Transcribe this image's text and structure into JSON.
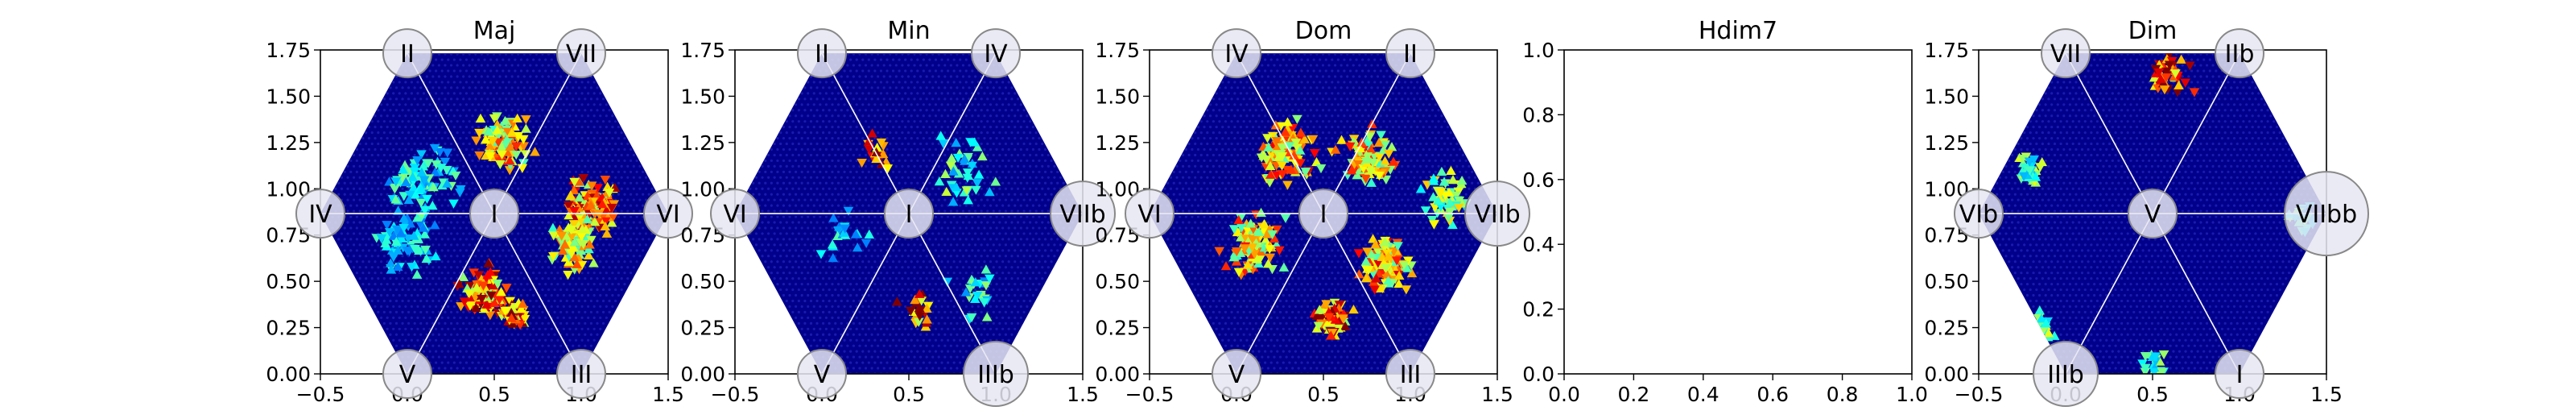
{
  "figure": {
    "background": "#ffffff",
    "hex_fill": "#00008b",
    "hex_dot": "#1a1ab0",
    "guide_line_color": "#ffffff",
    "node_fill": "#e6e6f2",
    "node_stroke": "#888888"
  },
  "chart_data": [
    {
      "type": "heatmap",
      "title": "Maj",
      "xlim": [
        -0.5,
        1.5
      ],
      "ylim": [
        0,
        1.75
      ],
      "xticks": [
        "−0.5",
        "0.0",
        "0.5",
        "1.0",
        "1.5"
      ],
      "yticks": [
        "0.00",
        "0.25",
        "0.50",
        "0.75",
        "1.00",
        "1.25",
        "1.50",
        "1.75"
      ],
      "hex_visible": true,
      "nodes": [
        {
          "label": "II",
          "x": 0.0,
          "y": 1.732
        },
        {
          "label": "VII",
          "x": 1.0,
          "y": 1.732
        },
        {
          "label": "IV",
          "x": -0.5,
          "y": 0.866
        },
        {
          "label": "I",
          "x": 0.5,
          "y": 0.866
        },
        {
          "label": "VI",
          "x": 1.5,
          "y": 0.866
        },
        {
          "label": "V",
          "x": 0.0,
          "y": 0.0
        },
        {
          "label": "III",
          "x": 1.0,
          "y": 0.0
        }
      ],
      "hotspots": [
        {
          "x": 0.55,
          "y": 1.25,
          "intensity": 0.75,
          "spread": 0.2,
          "count": 90
        },
        {
          "x": 0.45,
          "y": 0.45,
          "intensity": 0.9,
          "spread": 0.18,
          "count": 110
        },
        {
          "x": 0.62,
          "y": 0.32,
          "intensity": 0.95,
          "spread": 0.1,
          "count": 60
        },
        {
          "x": 1.05,
          "y": 0.9,
          "intensity": 0.85,
          "spread": 0.2,
          "count": 120
        },
        {
          "x": 0.95,
          "y": 0.7,
          "intensity": 0.7,
          "spread": 0.18,
          "count": 80
        },
        {
          "x": 0.1,
          "y": 1.05,
          "intensity": 0.45,
          "spread": 0.25,
          "count": 90
        },
        {
          "x": 0.0,
          "y": 0.7,
          "intensity": 0.4,
          "spread": 0.25,
          "count": 70
        }
      ]
    },
    {
      "type": "heatmap",
      "title": "Min",
      "xlim": [
        -0.5,
        1.5
      ],
      "ylim": [
        0,
        1.75
      ],
      "xticks": [
        "−0.5",
        "0.0",
        "0.5",
        "1.0",
        "1.5"
      ],
      "yticks": [
        "0.00",
        "0.25",
        "0.50",
        "0.75",
        "1.00",
        "1.25",
        "1.50",
        "1.75"
      ],
      "hex_visible": true,
      "nodes": [
        {
          "label": "II",
          "x": 0.0,
          "y": 1.732
        },
        {
          "label": "IV",
          "x": 1.0,
          "y": 1.732
        },
        {
          "label": "VI",
          "x": -0.5,
          "y": 0.866
        },
        {
          "label": "I",
          "x": 0.5,
          "y": 0.866
        },
        {
          "label": "VIIb",
          "x": 1.5,
          "y": 0.866
        },
        {
          "label": "V",
          "x": 0.0,
          "y": 0.0
        },
        {
          "label": "IIIb",
          "x": 1.0,
          "y": 0.0
        }
      ],
      "hotspots": [
        {
          "x": 0.8,
          "y": 1.1,
          "intensity": 0.5,
          "spread": 0.25,
          "count": 40
        },
        {
          "x": 0.9,
          "y": 0.45,
          "intensity": 0.45,
          "spread": 0.2,
          "count": 25
        },
        {
          "x": 0.15,
          "y": 0.75,
          "intensity": 0.4,
          "spread": 0.2,
          "count": 20
        },
        {
          "x": 0.3,
          "y": 1.2,
          "intensity": 0.95,
          "spread": 0.12,
          "count": 18
        },
        {
          "x": 0.55,
          "y": 0.35,
          "intensity": 0.95,
          "spread": 0.15,
          "count": 22
        }
      ]
    },
    {
      "type": "heatmap",
      "title": "Dom",
      "xlim": [
        -0.5,
        1.5
      ],
      "ylim": [
        0,
        1.75
      ],
      "xticks": [
        "−0.5",
        "0.0",
        "0.5",
        "1.0",
        "1.5"
      ],
      "yticks": [
        "0.00",
        "0.25",
        "0.50",
        "0.75",
        "1.00",
        "1.25",
        "1.50",
        "1.75"
      ],
      "hex_visible": true,
      "nodes": [
        {
          "label": "IV",
          "x": 0.0,
          "y": 1.732
        },
        {
          "label": "II",
          "x": 1.0,
          "y": 1.732
        },
        {
          "label": "VI",
          "x": -0.5,
          "y": 0.866
        },
        {
          "label": "I",
          "x": 0.5,
          "y": 0.866
        },
        {
          "label": "VIIb",
          "x": 1.5,
          "y": 0.866
        },
        {
          "label": "V",
          "x": 0.0,
          "y": 0.0
        },
        {
          "label": "III",
          "x": 1.0,
          "y": 0.0
        }
      ],
      "hotspots": [
        {
          "x": 0.3,
          "y": 1.2,
          "intensity": 0.8,
          "spread": 0.22,
          "count": 120
        },
        {
          "x": 0.75,
          "y": 1.15,
          "intensity": 0.75,
          "spread": 0.22,
          "count": 100
        },
        {
          "x": 0.1,
          "y": 0.7,
          "intensity": 0.75,
          "spread": 0.22,
          "count": 110
        },
        {
          "x": 0.85,
          "y": 0.6,
          "intensity": 0.8,
          "spread": 0.2,
          "count": 110
        },
        {
          "x": 0.55,
          "y": 0.3,
          "intensity": 0.9,
          "spread": 0.15,
          "count": 80
        },
        {
          "x": 1.2,
          "y": 0.95,
          "intensity": 0.6,
          "spread": 0.18,
          "count": 60
        }
      ]
    },
    {
      "type": "empty",
      "title": "Hdim7",
      "xlim": [
        0,
        1
      ],
      "ylim": [
        0,
        1
      ],
      "xticks": [
        "0.0",
        "0.2",
        "0.4",
        "0.6",
        "0.8",
        "1.0"
      ],
      "yticks": [
        "0.0",
        "0.2",
        "0.4",
        "0.6",
        "0.8",
        "1.0"
      ],
      "hex_visible": false,
      "nodes": [],
      "hotspots": []
    },
    {
      "type": "heatmap",
      "title": "Dim",
      "xlim": [
        -0.5,
        1.5
      ],
      "ylim": [
        0,
        1.75
      ],
      "xticks": [
        "−0.5",
        "0.0",
        "0.5",
        "1.0",
        "1.5"
      ],
      "yticks": [
        "0.00",
        "0.25",
        "0.50",
        "0.75",
        "1.00",
        "1.25",
        "1.50",
        "1.75"
      ],
      "hex_visible": true,
      "nodes": [
        {
          "label": "VII",
          "x": 0.0,
          "y": 1.732
        },
        {
          "label": "IIb",
          "x": 1.0,
          "y": 1.732
        },
        {
          "label": "VIb",
          "x": -0.5,
          "y": 0.866
        },
        {
          "label": "V",
          "x": 0.5,
          "y": 0.866
        },
        {
          "label": "VIIbb",
          "x": 1.5,
          "y": 0.866
        },
        {
          "label": "IIIb",
          "x": 0.0,
          "y": 0.0
        },
        {
          "label": "I",
          "x": 1.0,
          "y": 0.0
        }
      ],
      "hotspots": [
        {
          "x": 0.6,
          "y": 1.62,
          "intensity": 0.95,
          "spread": 0.16,
          "count": 45
        },
        {
          "x": -0.2,
          "y": 1.1,
          "intensity": 0.55,
          "spread": 0.12,
          "count": 30
        },
        {
          "x": -0.15,
          "y": 0.25,
          "intensity": 0.55,
          "spread": 0.12,
          "count": 30
        },
        {
          "x": 0.5,
          "y": 0.05,
          "intensity": 0.55,
          "spread": 0.12,
          "count": 25
        },
        {
          "x": 1.35,
          "y": 0.85,
          "intensity": 0.45,
          "spread": 0.1,
          "count": 25
        }
      ]
    }
  ]
}
